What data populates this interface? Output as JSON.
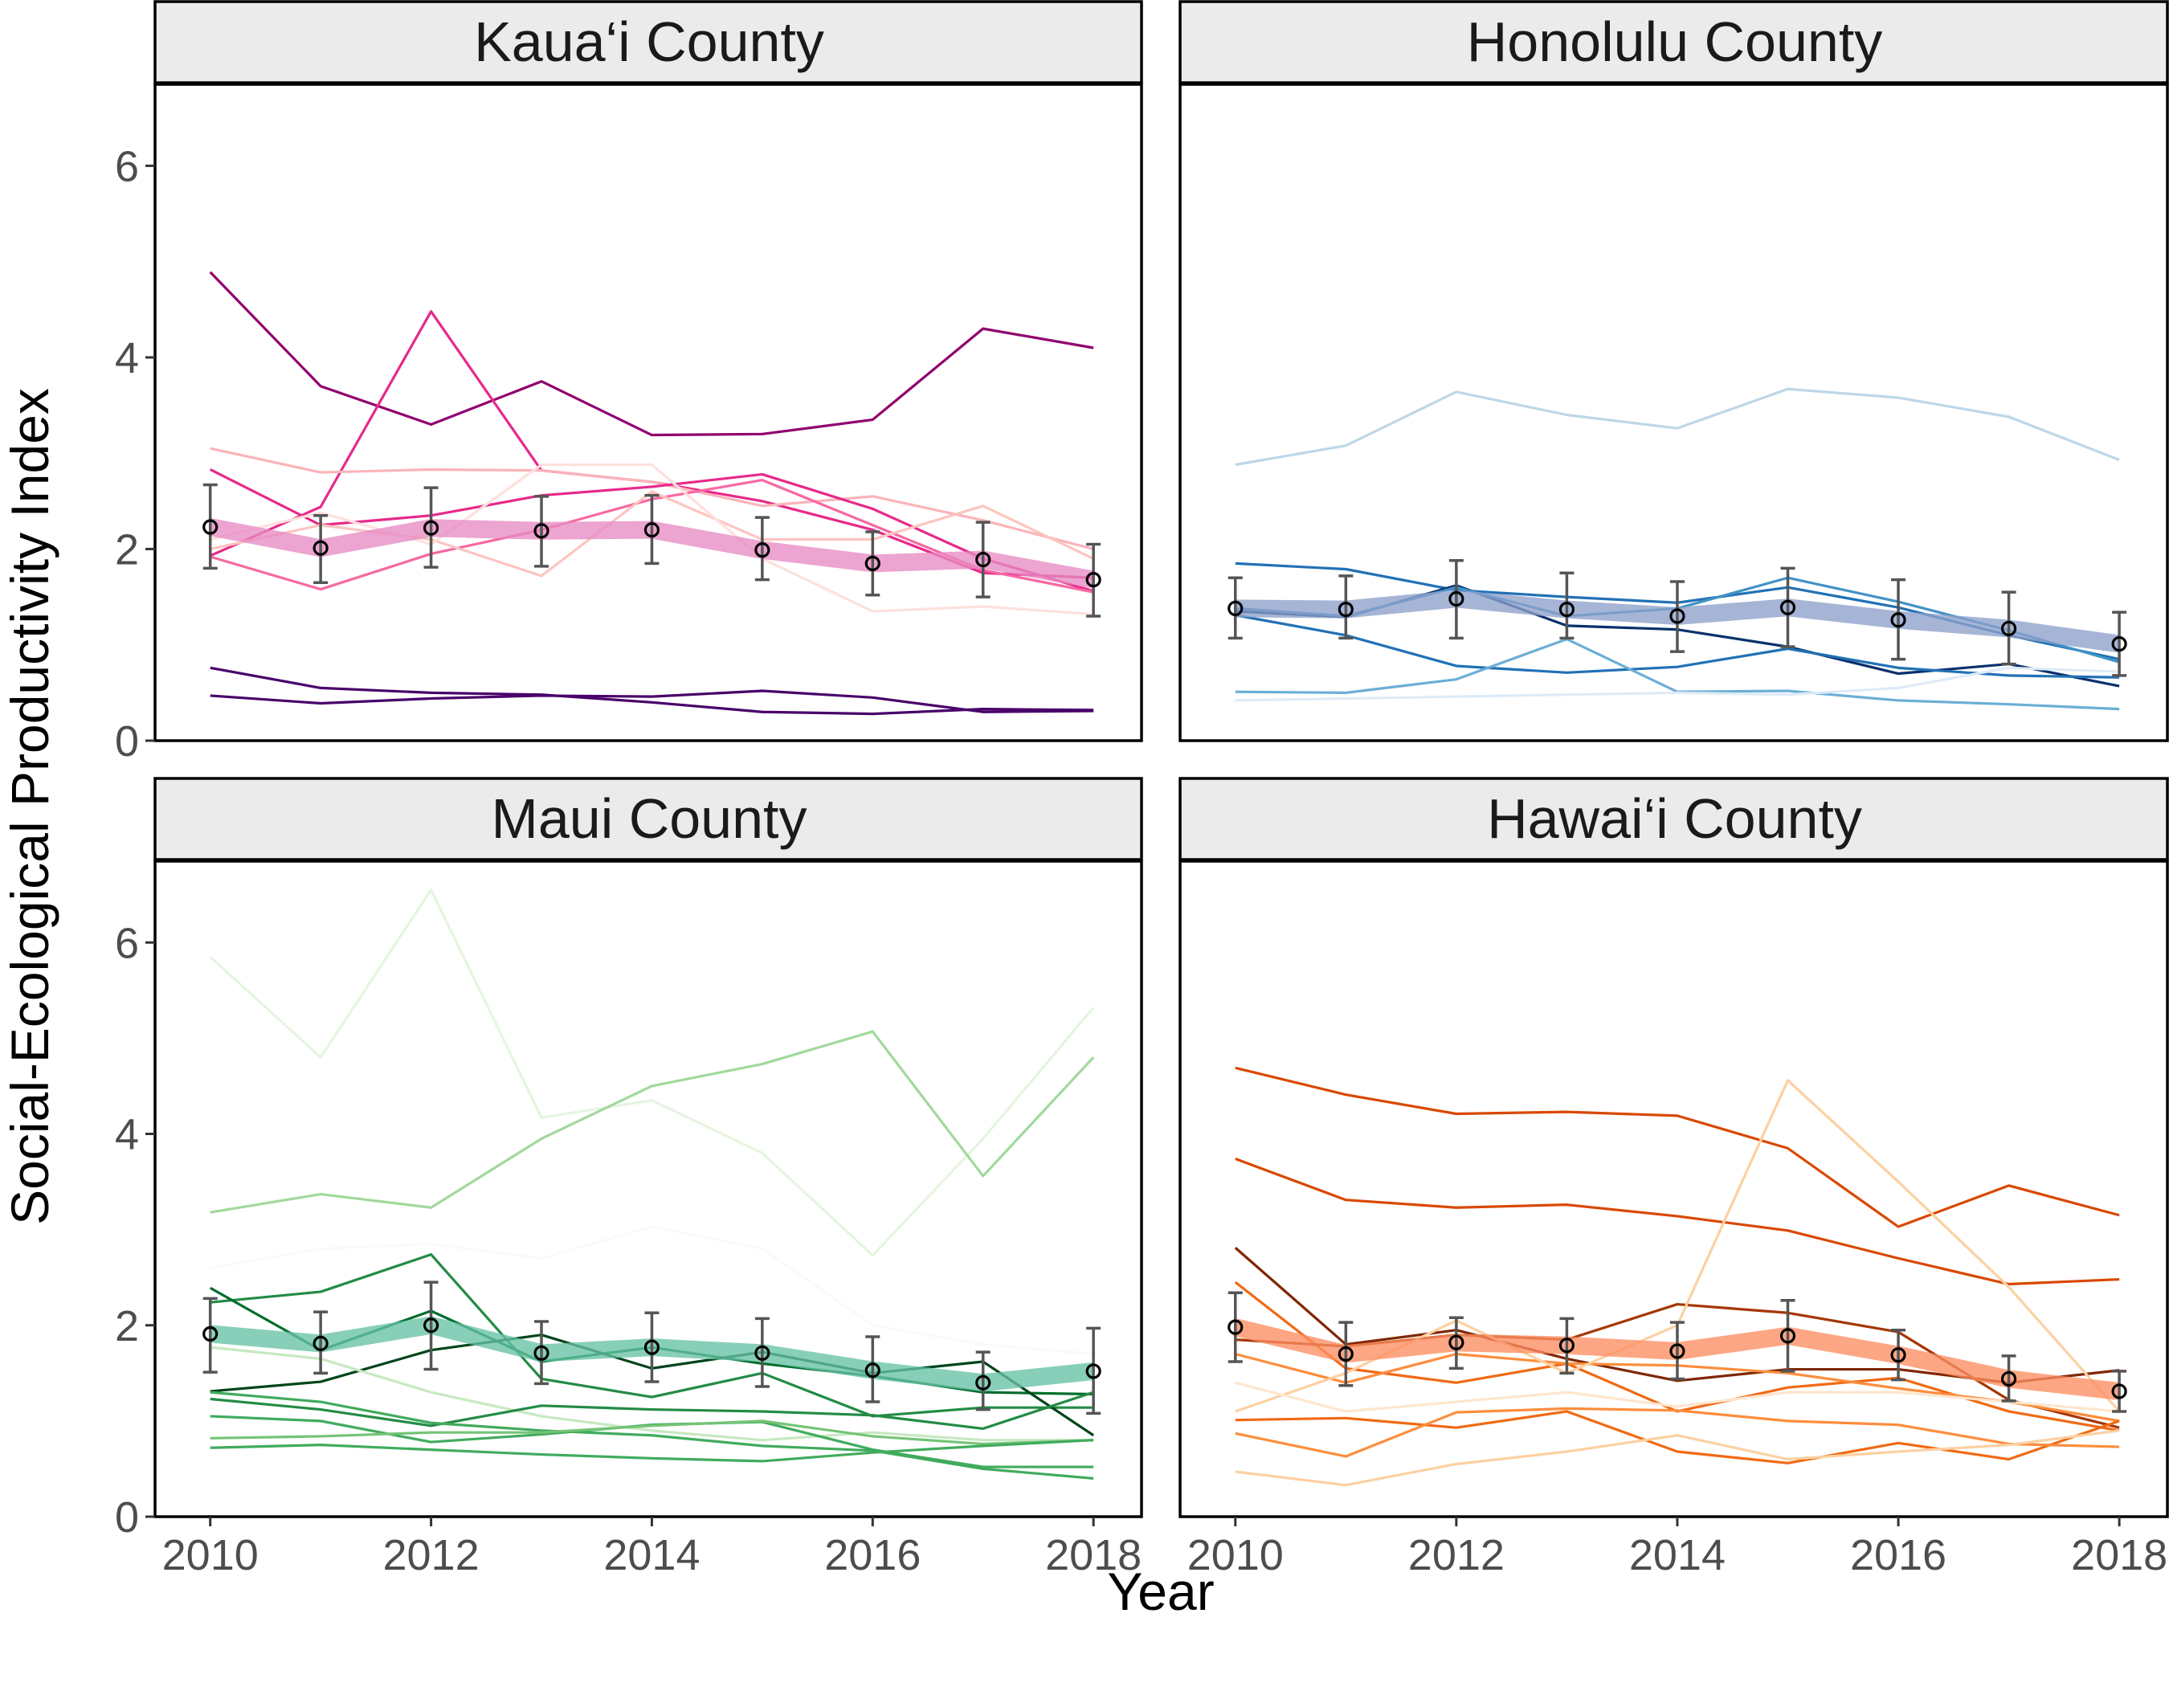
{
  "figure": {
    "xlabel": "Year",
    "ylabel": "Social-Ecological Productivity Index",
    "xticks": [
      "2010",
      "2012",
      "2014",
      "2016",
      "2018"
    ],
    "yticks": [
      "0",
      "2",
      "4",
      "6"
    ]
  },
  "chart_data": [
    {
      "type": "line",
      "panel": "Kaua‘i County",
      "title": "Kaua‘i County",
      "xlabel": "Year",
      "ylabel": "Social-Ecological Productivity Index",
      "xlim": [
        2009.5,
        2018.45
      ],
      "ylim": [
        0,
        6.85
      ],
      "grid": false,
      "x": [
        2010,
        2011,
        2012,
        2013,
        2014,
        2015,
        2016,
        2017,
        2018
      ],
      "mean": {
        "values": [
          2.23,
          2.01,
          2.22,
          2.19,
          2.2,
          1.99,
          1.85,
          1.89,
          1.68
        ],
        "err_low": [
          1.8,
          1.65,
          1.81,
          1.82,
          1.85,
          1.68,
          1.52,
          1.5,
          1.3
        ],
        "err_high": [
          2.67,
          2.35,
          2.64,
          2.55,
          2.56,
          2.33,
          2.18,
          2.28,
          2.05
        ],
        "color": "#e78ac3"
      },
      "series": [
        {
          "values": [
            4.89,
            3.7,
            3.3,
            3.75,
            3.19,
            3.2,
            3.35,
            4.3,
            4.1
          ],
          "color": "#91006e"
        },
        {
          "values": [
            1.93,
            2.44,
            4.48,
            2.82,
            2.7,
            2.5,
            2.2,
            1.75,
            1.7
          ],
          "color": "#e7298a"
        },
        {
          "values": [
            3.05,
            2.8,
            2.83,
            2.82,
            2.7,
            2.45,
            2.55,
            2.3,
            2.0
          ],
          "color": "#fbb4b9"
        },
        {
          "values": [
            2.83,
            2.25,
            2.35,
            2.56,
            2.65,
            2.78,
            2.42,
            1.9,
            1.56
          ],
          "color": "#e7298a"
        },
        {
          "values": [
            1.92,
            1.58,
            1.95,
            2.2,
            2.52,
            2.72,
            2.25,
            1.78,
            1.55
          ],
          "color": "#f768a1"
        },
        {
          "values": [
            2.0,
            2.25,
            2.1,
            1.72,
            2.6,
            2.1,
            2.1,
            2.45,
            1.9
          ],
          "color": "#fcc5c0"
        },
        {
          "values": [
            2.1,
            2.38,
            2.05,
            2.88,
            2.88,
            1.9,
            1.35,
            1.4,
            1.32
          ],
          "color": "#fde0dd"
        },
        {
          "values": [
            0.76,
            0.55,
            0.5,
            0.48,
            0.4,
            0.3,
            0.28,
            0.33,
            0.32
          ],
          "color": "#49006a"
        },
        {
          "values": [
            0.47,
            0.39,
            0.44,
            0.47,
            0.46,
            0.52,
            0.45,
            0.3,
            0.31
          ],
          "color": "#49006a"
        }
      ]
    },
    {
      "type": "line",
      "panel": "Honolulu County",
      "title": "Honolulu County",
      "xlabel": "Year",
      "ylabel": "Social-Ecological Productivity Index",
      "xlim": [
        2009.5,
        2018.45
      ],
      "ylim": [
        0,
        6.85
      ],
      "grid": false,
      "x": [
        2010,
        2011,
        2012,
        2013,
        2014,
        2015,
        2016,
        2017,
        2018
      ],
      "mean": {
        "values": [
          1.38,
          1.37,
          1.48,
          1.37,
          1.3,
          1.39,
          1.26,
          1.17,
          1.01
        ],
        "err_low": [
          1.07,
          1.07,
          1.07,
          1.07,
          0.93,
          0.98,
          0.85,
          0.8,
          0.68
        ],
        "err_high": [
          1.7,
          1.72,
          1.88,
          1.75,
          1.66,
          1.8,
          1.68,
          1.55,
          1.34
        ],
        "color": "#8da0cb"
      },
      "series": [
        {
          "values": [
            2.88,
            3.08,
            3.64,
            3.4,
            3.26,
            3.67,
            3.58,
            3.38,
            2.93
          ],
          "color": "#bdd7e7"
        },
        {
          "values": [
            1.85,
            1.79,
            1.57,
            1.5,
            1.44,
            1.6,
            1.39,
            1.1,
            0.85
          ],
          "color": "#2171b5"
        },
        {
          "values": [
            1.35,
            1.29,
            1.62,
            1.2,
            1.16,
            0.98,
            0.7,
            0.8,
            0.57
          ],
          "color": "#08306b"
        },
        {
          "values": [
            1.31,
            1.1,
            0.78,
            0.71,
            0.77,
            0.96,
            0.76,
            0.68,
            0.66
          ],
          "color": "#2171b5"
        },
        {
          "values": [
            1.38,
            1.3,
            1.6,
            1.3,
            1.38,
            1.7,
            1.45,
            1.15,
            0.82
          ],
          "color": "#4292c6"
        },
        {
          "values": [
            0.51,
            0.5,
            0.64,
            1.06,
            0.51,
            0.52,
            0.42,
            0.38,
            0.33
          ],
          "color": "#6baed6"
        },
        {
          "values": [
            0.42,
            0.44,
            0.46,
            0.48,
            0.5,
            0.48,
            0.55,
            0.76,
            0.72
          ],
          "color": "#deebf7"
        }
      ]
    },
    {
      "type": "line",
      "panel": "Maui County",
      "title": "Maui County",
      "xlabel": "Year",
      "ylabel": "Social-Ecological Productivity Index",
      "xlim": [
        2009.5,
        2018.45
      ],
      "ylim": [
        0,
        6.85
      ],
      "grid": false,
      "x": [
        2010,
        2011,
        2012,
        2013,
        2014,
        2015,
        2016,
        2017,
        2018
      ],
      "mean": {
        "values": [
          1.91,
          1.81,
          2.0,
          1.71,
          1.77,
          1.71,
          1.53,
          1.4,
          1.52
        ],
        "err_low": [
          1.51,
          1.5,
          1.54,
          1.39,
          1.41,
          1.36,
          1.2,
          1.12,
          1.08
        ],
        "err_high": [
          2.28,
          2.14,
          2.45,
          2.04,
          2.13,
          2.07,
          1.88,
          1.72,
          1.97
        ],
        "color": "#66c2a5"
      },
      "series": [
        {
          "values": [
            5.85,
            4.8,
            6.55,
            4.17,
            4.35,
            3.8,
            2.73,
            3.95,
            5.32
          ],
          "color": "#e5f5e0"
        },
        {
          "values": [
            3.18,
            3.37,
            3.23,
            3.95,
            4.5,
            4.73,
            5.07,
            3.56,
            4.8
          ],
          "color": "#a1d99b"
        },
        {
          "values": [
            2.6,
            2.8,
            2.85,
            2.7,
            3.03,
            2.8,
            2.0,
            1.8,
            1.7
          ],
          "color": "#f7fcf5"
        },
        {
          "values": [
            2.24,
            2.35,
            2.74,
            1.44,
            1.25,
            1.5,
            1.05,
            1.14,
            1.14
          ],
          "color": "#238b45"
        },
        {
          "values": [
            2.39,
            1.74,
            2.15,
            1.62,
            1.77,
            1.6,
            1.47,
            1.3,
            1.28
          ],
          "color": "#006d2c"
        },
        {
          "values": [
            1.31,
            1.41,
            1.74,
            1.9,
            1.55,
            1.72,
            1.5,
            1.62,
            0.85
          ],
          "color": "#00441b"
        },
        {
          "values": [
            1.77,
            1.65,
            1.3,
            1.05,
            0.9,
            0.8,
            0.88,
            0.8,
            0.8
          ],
          "color": "#c7e9c0"
        },
        {
          "values": [
            1.23,
            1.12,
            0.95,
            1.16,
            1.12,
            1.1,
            1.06,
            0.92,
            1.3
          ],
          "color": "#238b45"
        },
        {
          "values": [
            1.05,
            1.0,
            0.78,
            0.86,
            0.96,
            0.99,
            0.7,
            0.52,
            0.52
          ],
          "color": "#41ab5d"
        },
        {
          "values": [
            1.3,
            1.2,
            0.98,
            0.9,
            0.85,
            0.74,
            0.69,
            0.5,
            0.4
          ],
          "color": "#41ab5d"
        },
        {
          "values": [
            0.82,
            0.84,
            0.88,
            0.88,
            0.95,
            1.0,
            0.84,
            0.76,
            0.8
          ],
          "color": "#74c476"
        },
        {
          "values": [
            0.72,
            0.75,
            0.7,
            0.65,
            0.61,
            0.58,
            0.67,
            0.74,
            0.8
          ],
          "color": "#41ab5d"
        }
      ]
    },
    {
      "type": "line",
      "panel": "Hawai‘i County",
      "title": "Hawai‘i County",
      "xlabel": "Year",
      "ylabel": "Social-Ecological Productivity Index",
      "xlim": [
        2009.5,
        2018.45
      ],
      "ylim": [
        0,
        6.85
      ],
      "grid": false,
      "x": [
        2010,
        2011,
        2012,
        2013,
        2014,
        2015,
        2016,
        2017,
        2018
      ],
      "mean": {
        "values": [
          1.98,
          1.7,
          1.82,
          1.79,
          1.73,
          1.89,
          1.69,
          1.44,
          1.31
        ],
        "err_low": [
          1.62,
          1.37,
          1.55,
          1.5,
          1.44,
          1.52,
          1.43,
          1.21,
          1.1
        ],
        "err_high": [
          2.34,
          2.03,
          2.08,
          2.07,
          2.03,
          2.26,
          1.95,
          1.68,
          1.52
        ],
        "color": "#fc8d62"
      },
      "series": [
        {
          "values": [
            4.69,
            4.41,
            4.21,
            4.23,
            4.19,
            3.85,
            3.03,
            3.46,
            3.15
          ],
          "color": "#d94801"
        },
        {
          "values": [
            3.74,
            3.31,
            3.23,
            3.26,
            3.14,
            2.99,
            2.7,
            2.43,
            2.48
          ],
          "color": "#d94801"
        },
        {
          "values": [
            2.81,
            1.8,
            1.95,
            1.65,
            1.42,
            1.54,
            1.54,
            1.4,
            1.53
          ],
          "color": "#7f2704"
        },
        {
          "values": [
            2.45,
            1.55,
            1.4,
            1.6,
            1.1,
            1.35,
            1.45,
            1.1,
            0.9
          ],
          "color": "#f16913"
        },
        {
          "values": [
            1.85,
            1.78,
            1.9,
            1.85,
            2.22,
            2.13,
            1.93,
            1.22,
            0.93
          ],
          "color": "#a63603"
        },
        {
          "values": [
            1.7,
            1.4,
            1.7,
            1.6,
            1.58,
            1.5,
            1.34,
            1.2,
            1.0
          ],
          "color": "#fd8d3c"
        },
        {
          "values": [
            1.1,
            1.5,
            2.05,
            1.5,
            2.0,
            4.56,
            3.5,
            2.4,
            1.1
          ],
          "color": "#fdd0a2"
        },
        {
          "values": [
            1.01,
            1.03,
            0.93,
            1.1,
            0.68,
            0.56,
            0.77,
            0.6,
            1.0
          ],
          "color": "#f16913"
        },
        {
          "values": [
            0.87,
            0.63,
            1.09,
            1.13,
            1.11,
            1.0,
            0.96,
            0.76,
            0.73
          ],
          "color": "#fd8d3c"
        },
        {
          "values": [
            0.47,
            0.33,
            0.55,
            0.68,
            0.85,
            0.6,
            0.68,
            0.75,
            0.9
          ],
          "color": "#fdd0a2"
        },
        {
          "values": [
            1.4,
            1.1,
            1.2,
            1.3,
            1.15,
            1.3,
            1.3,
            1.2,
            1.1
          ],
          "color": "#fee6ce"
        }
      ]
    }
  ]
}
